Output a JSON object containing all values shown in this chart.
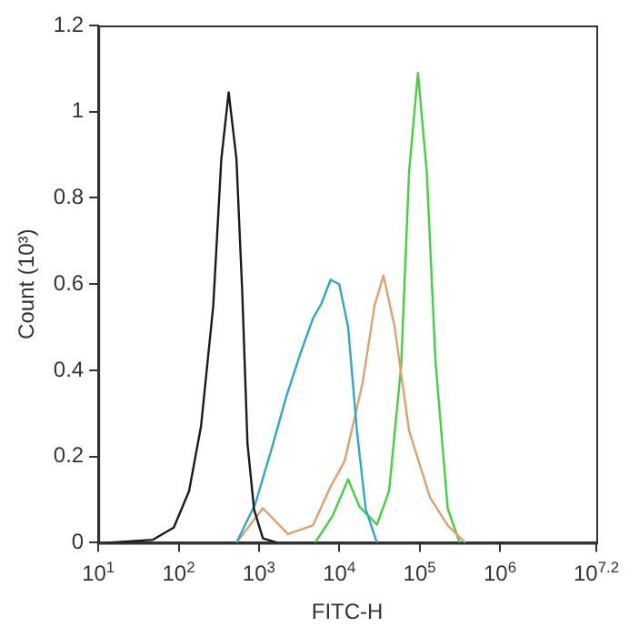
{
  "chart_data": {
    "type": "line",
    "xlabel": "FITC-H",
    "ylabel": "Count (10³)",
    "log": "x",
    "grid": false,
    "legend": false,
    "marker": "none",
    "line_style": "solid",
    "xlim": [
      10,
      15848932
    ],
    "ylim": [
      0,
      1.2
    ],
    "xticks": [
      {
        "value": 10,
        "label": "10$^{1}$"
      },
      {
        "value": 100,
        "label": "10$^{2}$"
      },
      {
        "value": 1000,
        "label": "10$^{3}$"
      },
      {
        "value": 10000,
        "label": "10$^{4}$"
      },
      {
        "value": 100000,
        "label": "10$^{5}$"
      },
      {
        "value": 1000000,
        "label": "10$^{6}$"
      },
      {
        "value": 15848932,
        "label": "10$^{7.2}$"
      }
    ],
    "yticks": [
      0,
      0.2,
      0.4,
      0.6,
      0.8,
      1,
      1.2
    ],
    "series": [
      {
        "color": "#1a1a1a",
        "x": [
          13,
          48,
          87,
          135,
          190,
          270,
          340,
          420,
          525,
          620,
          720,
          870,
          1120,
          1700
        ],
        "values": [
          0,
          0.007,
          0.035,
          0.12,
          0.27,
          0.55,
          0.89,
          1.045,
          0.89,
          0.58,
          0.23,
          0.077,
          0.01,
          0
        ]
      },
      {
        "color": "#2fa8c8",
        "x": [
          525,
          900,
          1450,
          2200,
          3300,
          4700,
          6000,
          7800,
          10000,
          12900,
          16600,
          21400,
          29500
        ],
        "values": [
          0,
          0.09,
          0.22,
          0.34,
          0.44,
          0.52,
          0.555,
          0.61,
          0.6,
          0.5,
          0.26,
          0.077,
          0
        ]
      },
      {
        "color": "#e0a070",
        "x": [
          525,
          1120,
          2300,
          4700,
          7800,
          11700,
          19500,
          27500,
          35500,
          49000,
          74000,
          135000,
          224000,
          372000
        ],
        "values": [
          0,
          0.08,
          0.02,
          0.04,
          0.13,
          0.19,
          0.37,
          0.55,
          0.62,
          0.5,
          0.26,
          0.105,
          0.04,
          0
        ]
      },
      {
        "color": "#44d040",
        "x": [
          5000,
          8300,
          12900,
          17800,
          29500,
          41700,
          59000,
          74000,
          95500,
          123000,
          158000,
          224000,
          316000
        ],
        "values": [
          0,
          0.063,
          0.147,
          0.084,
          0.042,
          0.12,
          0.41,
          0.86,
          1.09,
          0.86,
          0.42,
          0.08,
          0
        ]
      }
    ]
  }
}
